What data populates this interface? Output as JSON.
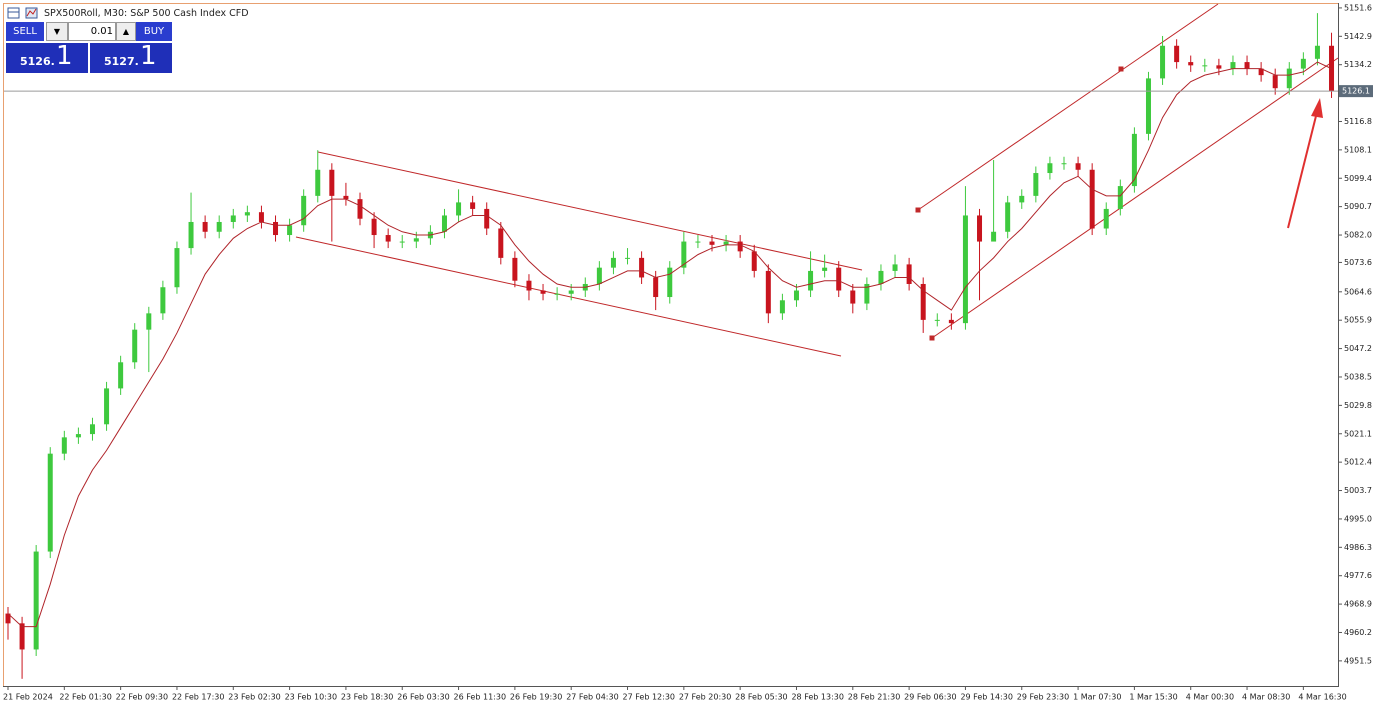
{
  "chart_data": {
    "type": "candlestick",
    "title": "SPX500Roll, M30:  S&P 500 Cash Index CFD",
    "categories": [
      "21 Feb 2024",
      null,
      null,
      null,
      "22 Feb 01:30",
      null,
      null,
      null,
      "22 Feb 09:30",
      null,
      null,
      null,
      "22 Feb 17:30",
      null,
      null,
      null,
      "23 Feb 02:30",
      null,
      null,
      null,
      "23 Feb 10:30",
      null,
      null,
      null,
      "23 Feb 18:30",
      null,
      null,
      null,
      "26 Feb 03:30",
      null,
      null,
      null,
      "26 Feb 11:30",
      null,
      null,
      null,
      "26 Feb 19:30",
      null,
      null,
      null,
      "27 Feb 04:30",
      null,
      null,
      null,
      "27 Feb 12:30",
      null,
      null,
      null,
      "27 Feb 20:30",
      null,
      null,
      null,
      "28 Feb 05:30",
      null,
      null,
      null,
      "28 Feb 13:30",
      null,
      null,
      null,
      "28 Feb 21:30",
      null,
      null,
      null,
      "29 Feb 06:30",
      null,
      null,
      null,
      "29 Feb 14:30",
      null,
      null,
      null,
      "29 Feb 23:30",
      null,
      null,
      null,
      "1 Mar 07:30",
      null,
      null,
      null,
      "1 Mar 15:30",
      null,
      null,
      null,
      "4 Mar 00:30",
      null,
      null,
      null,
      "4 Mar 08:30",
      null,
      null,
      null,
      "4 Mar 16:30",
      null,
      null
    ],
    "open": [
      4966,
      4963,
      4955,
      4985,
      5015,
      5020,
      5021,
      5024,
      5035,
      5043,
      5053,
      5058,
      5066,
      5078,
      5086,
      5083,
      5086,
      5088,
      5089,
      5086,
      5082,
      5085,
      5094,
      5102,
      5094,
      5093,
      5087,
      5082,
      5080,
      5080,
      5081,
      5083,
      5088,
      5092,
      5090,
      5084,
      5075,
      5068,
      5065,
      5064,
      5064,
      5065,
      5067,
      5072,
      5075,
      5075,
      5069,
      5063,
      5072,
      5080,
      5080,
      5079,
      5080,
      5077,
      5071,
      5058,
      5062,
      5065,
      5071,
      5072,
      5065,
      5061,
      5067,
      5071,
      5073,
      5067,
      5056,
      5056,
      5055,
      5088,
      5080,
      5083,
      5092,
      5094,
      5101,
      5104,
      5104,
      5102,
      5084,
      5090,
      5097,
      5113,
      5130,
      5140,
      5135,
      5134,
      5134,
      5133,
      5135,
      5133,
      5131,
      5127,
      5133,
      5136,
      5140
    ],
    "high": [
      4968,
      4965,
      4987,
      5017,
      5022,
      5023,
      5026,
      5037,
      5045,
      5055,
      5060,
      5068,
      5080,
      5095,
      5088,
      5088,
      5090,
      5091,
      5091,
      5088,
      5087,
      5096,
      5108,
      5104,
      5098,
      5095,
      5089,
      5084,
      5082,
      5083,
      5085,
      5090,
      5096,
      5094,
      5092,
      5086,
      5077,
      5070,
      5067,
      5066,
      5067,
      5069,
      5074,
      5077,
      5078,
      5077,
      5071,
      5074,
      5083,
      5082,
      5082,
      5082,
      5082,
      5079,
      5073,
      5064,
      5067,
      5077,
      5076,
      5074,
      5067,
      5069,
      5073,
      5076,
      5075,
      5069,
      5058,
      5058,
      5097,
      5090,
      5105,
      5094,
      5096,
      5103,
      5106,
      5106,
      5106,
      5104,
      5092,
      5099,
      5115,
      5132,
      5143,
      5142,
      5137,
      5136,
      5136,
      5137,
      5137,
      5135,
      5133,
      5135,
      5138,
      5150,
      5144
    ],
    "low": [
      4958,
      4946,
      4953,
      4983,
      5013,
      5018,
      5019,
      5022,
      5033,
      5041,
      5040,
      5056,
      5064,
      5076,
      5081,
      5081,
      5084,
      5086,
      5084,
      5080,
      5080,
      5083,
      5092,
      5080,
      5091,
      5085,
      5078,
      5078,
      5078,
      5078,
      5079,
      5081,
      5086,
      5088,
      5082,
      5073,
      5066,
      5062,
      5062,
      5062,
      5062,
      5063,
      5065,
      5070,
      5073,
      5067,
      5059,
      5061,
      5070,
      5078,
      5077,
      5077,
      5075,
      5069,
      5055,
      5056,
      5060,
      5063,
      5069,
      5063,
      5058,
      5059,
      5065,
      5069,
      5065,
      5052,
      5054,
      5053,
      5053,
      5062,
      5081,
      5081,
      5090,
      5092,
      5099,
      5102,
      5100,
      5082,
      5082,
      5088,
      5095,
      5111,
      5128,
      5133,
      5132,
      5132,
      5131,
      5131,
      5131,
      5129,
      5125,
      5125,
      5131,
      5134,
      5124
    ],
    "close": [
      4963,
      4955,
      4985,
      5015,
      5020,
      5021,
      5024,
      5035,
      5043,
      5053,
      5058,
      5066,
      5078,
      5086,
      5083,
      5086,
      5088,
      5089,
      5086,
      5082,
      5085,
      5094,
      5102,
      5094,
      5093,
      5087,
      5082,
      5080,
      5080,
      5081,
      5083,
      5088,
      5092,
      5090,
      5084,
      5075,
      5068,
      5065,
      5064,
      5064,
      5065,
      5067,
      5072,
      5075,
      5075,
      5069,
      5063,
      5072,
      5080,
      5080,
      5079,
      5080,
      5077,
      5071,
      5058,
      5062,
      5065,
      5071,
      5072,
      5065,
      5061,
      5067,
      5071,
      5073,
      5067,
      5056,
      5056,
      5055,
      5088,
      5080,
      5083,
      5092,
      5094,
      5101,
      5104,
      5104,
      5102,
      5084,
      5090,
      5097,
      5113,
      5130,
      5140,
      5135,
      5134,
      5134,
      5133,
      5135,
      5133,
      5131,
      5127,
      5133,
      5136,
      5140,
      5126
    ],
    "up_color": "#3ec93e",
    "down_color": "#c8141e",
    "ma": {
      "color": "#b0242a",
      "values": [
        4966,
        4962,
        4962,
        4975,
        4990,
        5002,
        5010,
        5016,
        5023,
        5030,
        5037,
        5044,
        5052,
        5061,
        5070,
        5076,
        5081,
        5084,
        5086,
        5085,
        5085,
        5087,
        5091,
        5093,
        5093,
        5091,
        5088,
        5085,
        5083,
        5082,
        5082,
        5083,
        5086,
        5088,
        5088,
        5085,
        5079,
        5074,
        5070,
        5067,
        5066,
        5066,
        5067,
        5069,
        5071,
        5071,
        5069,
        5070,
        5073,
        5076,
        5078,
        5079,
        5079,
        5077,
        5072,
        5068,
        5066,
        5067,
        5068,
        5068,
        5066,
        5066,
        5067,
        5069,
        5069,
        5065,
        5062,
        5059,
        5066,
        5071,
        5075,
        5080,
        5084,
        5089,
        5094,
        5098,
        5100,
        5096,
        5094,
        5094,
        5099,
        5108,
        5118,
        5125,
        5129,
        5131,
        5132,
        5133,
        5133,
        5133,
        5131,
        5131,
        5132,
        5135,
        5133
      ]
    },
    "ylim": [
      4943.8,
      5152.8
    ],
    "yticks": [
      5151.6,
      5142.9,
      5134.2,
      5116.8,
      5108.1,
      5099.4,
      5090.7,
      {
        "value": 5082,
        "label": "5082.0"
      },
      5073.6,
      5064.6,
      5055.9,
      5047.2,
      5038.5,
      5029.8,
      5021.1,
      5012.4,
      5003.7,
      {
        "value": 4995,
        "label": "4995.0"
      },
      4986.3,
      4977.6,
      4968.9,
      4960.2,
      4951.5
    ],
    "current_price": 5126.1,
    "grid": false
  },
  "trade_panel": {
    "sell": "SELL",
    "lot": "0.01",
    "buy": "BUY",
    "bid": "5126.",
    "bid_digit": "1",
    "ask": "5127.",
    "ask_digit": "1"
  }
}
